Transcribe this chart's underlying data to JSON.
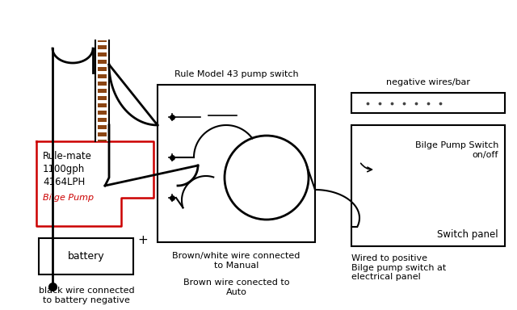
{
  "bg_color": "#ffffff",
  "pump_box_label": "Rule Model 43 pump switch",
  "neg_bar_label": "negative wires/bar",
  "switch_panel_label": "Switch panel",
  "bilge_switch_label": "Bilge Pump Switch\non/off",
  "battery_label": "battery",
  "battery_plus_label": "+",
  "pump_label_line1": "Rule-mate",
  "pump_label_line2": "1100gph",
  "pump_label_line3": "4164LPH",
  "pump_label_red": "Bilge Pump",
  "bottom_label1": "Brown/white wire connected\nto Manual",
  "bottom_label2": "Brown wire conected to\nAuto",
  "bottom_label3": "black wire connected\nto battery negative",
  "wired_pos_label": "Wired to positive\nBilge pump switch at\nelectrical panel",
  "black": "#000000",
  "red": "#cc0000",
  "brown": "#8B4513",
  "white": "#ffffff"
}
